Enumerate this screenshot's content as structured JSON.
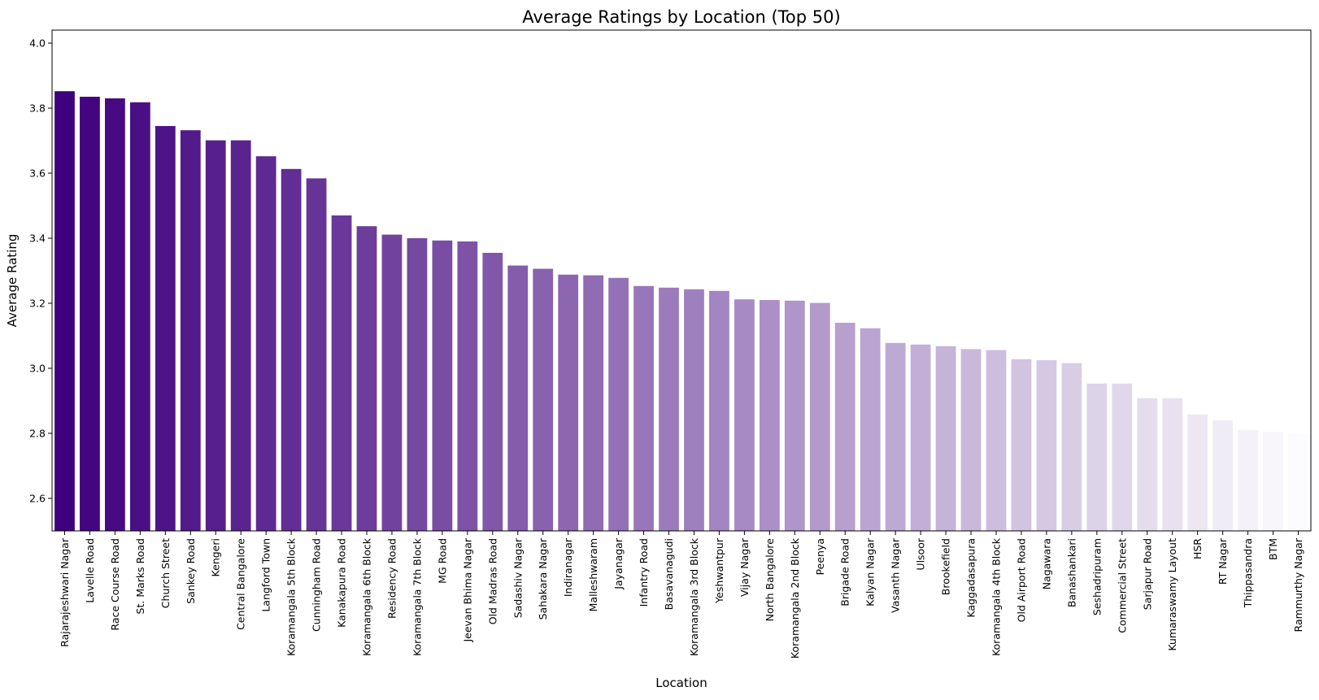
{
  "chart_data": {
    "type": "bar",
    "title": "Average Ratings by Location (Top 50)",
    "xlabel": "Location",
    "ylabel": "Average Rating",
    "ylim": [
      2.5,
      4.04
    ],
    "yticks": [
      2.6,
      2.8,
      3.0,
      3.2,
      3.4,
      3.6,
      3.8,
      4.0
    ],
    "grid": false,
    "legend": "none",
    "palette": {
      "dark": "#3f007d",
      "light": "#fcfbfd"
    },
    "categories": [
      "Rajarajeshwari Nagar",
      "Lavelle Road",
      "Race Course Road",
      "St. Marks Road",
      "Church Street",
      "Sankey Road",
      "Kengeri",
      "Central Bangalore",
      "Langford Town",
      "Koramangala 5th Block",
      "Cunningham Road",
      "Kanakapura Road",
      "Koramangala 6th Block",
      "Residency Road",
      "Koramangala 7th Block",
      "MG Road",
      "Jeevan Bhima Nagar",
      "Old Madras Road",
      "Sadashiv Nagar",
      "Sahakara Nagar",
      "Indiranagar",
      "Malleshwaram",
      "Jayanagar",
      "Infantry Road",
      "Basavanagudi",
      "Koramangala 3rd Block",
      "Yeshwantpur",
      "Vijay Nagar",
      "North Bangalore",
      "Koramangala 2nd Block",
      "Peenya",
      "Brigade Road",
      "Kalyan Nagar",
      "Vasanth Nagar",
      "Ulsoor",
      "Brookefield",
      "Kaggadasapura",
      "Koramangala 4th Block",
      "Old Airport Road",
      "Nagawara",
      "Banashankari",
      "Seshadripuram",
      "Commercial Street",
      "Sarjapur Road",
      "Kumaraswamy Layout",
      "HSR",
      "RT Nagar",
      "Thippasandra",
      "BTM",
      "Rammurthy Nagar"
    ],
    "values": [
      3.852,
      3.835,
      3.83,
      3.818,
      3.745,
      3.732,
      3.701,
      3.701,
      3.652,
      3.613,
      3.584,
      3.47,
      3.437,
      3.411,
      3.4,
      3.393,
      3.39,
      3.355,
      3.316,
      3.306,
      3.288,
      3.286,
      3.278,
      3.253,
      3.248,
      3.243,
      3.238,
      3.212,
      3.21,
      3.208,
      3.201,
      3.14,
      3.123,
      3.078,
      3.073,
      3.068,
      3.059,
      3.056,
      3.028,
      3.025,
      3.016,
      2.953,
      2.953,
      2.908,
      2.908,
      2.858,
      2.84,
      2.81,
      2.805,
      2.8
    ]
  }
}
